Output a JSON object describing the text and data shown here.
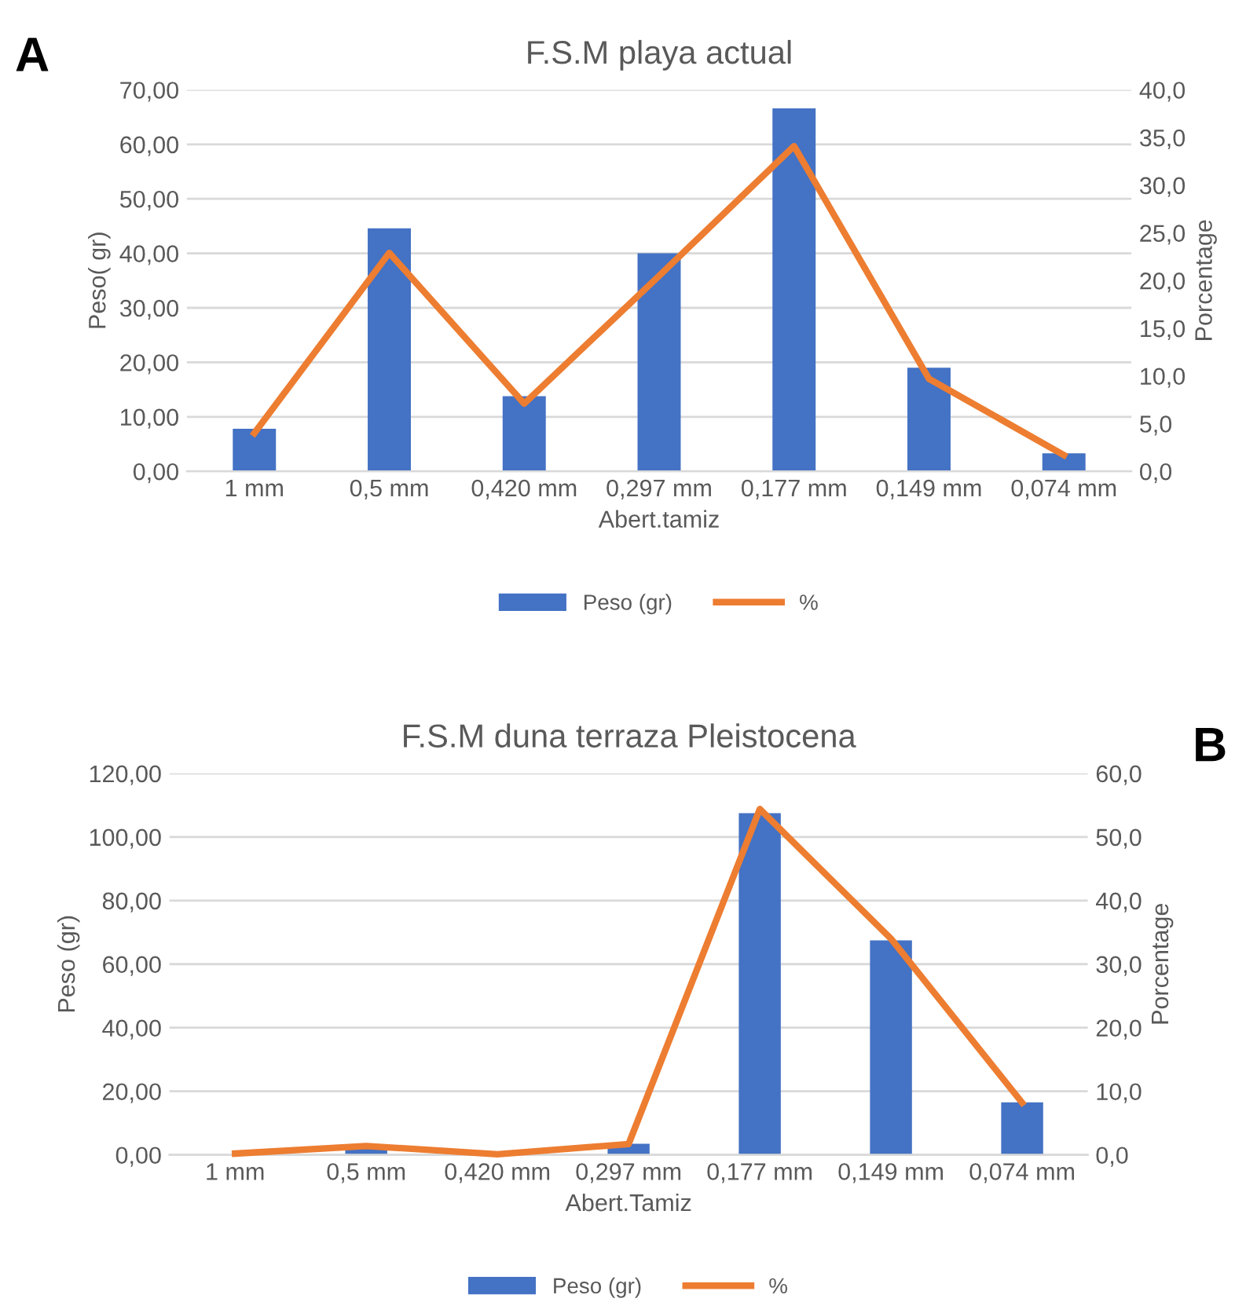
{
  "chart_data": [
    {
      "type": "bar",
      "title": "F.S.M playa actual",
      "xlabel": "Abert.tamiz",
      "ylabel": "Peso( gr)",
      "y2label": "Porcentage",
      "annotations": [
        "A"
      ],
      "categories": [
        "1 mm",
        "0,5 mm",
        "0,420 mm",
        "0,297 mm",
        "0,177 mm",
        "0,149 mm",
        "0,074 mm"
      ],
      "series": [
        {
          "name": "Peso (gr)",
          "color": "#4472c4",
          "values": [
            7.8,
            44.6,
            13.8,
            40.0,
            66.6,
            19.0,
            3.3
          ]
        },
        {
          "name": "%",
          "type": "line",
          "axis": "y2",
          "color": "#ed7d31",
          "values": [
            4.0,
            22.9,
            7.1,
            20.5,
            34.1,
            9.7,
            1.7
          ]
        }
      ],
      "ylim": [
        0,
        70
      ],
      "yticks": [
        {
          "value": 0,
          "label": "0,00"
        },
        {
          "value": 10,
          "label": "10,00"
        },
        {
          "value": 20,
          "label": "20,00"
        },
        {
          "value": 30,
          "label": "30,00"
        },
        {
          "value": 40,
          "label": "40,00"
        },
        {
          "value": 50,
          "label": "50,00"
        },
        {
          "value": 60,
          "label": "60,00"
        },
        {
          "value": 70,
          "label": "70,00"
        }
      ],
      "y2lim": [
        0,
        40
      ],
      "y2ticks": [
        {
          "value": 0,
          "label": "0,0"
        },
        {
          "value": 5,
          "label": "5,0"
        },
        {
          "value": 10,
          "label": "10,0"
        },
        {
          "value": 15,
          "label": "15,0"
        },
        {
          "value": 20,
          "label": "20,0"
        },
        {
          "value": 25,
          "label": "25,0"
        },
        {
          "value": 30,
          "label": "30,0"
        },
        {
          "value": 35,
          "label": "35,0"
        },
        {
          "value": 40,
          "label": "40,0"
        }
      ],
      "grid": "y",
      "legend": "bottom"
    },
    {
      "type": "bar",
      "title": "F.S.M duna terraza Pleistocena",
      "xlabel": "Abert.Tamiz",
      "ylabel": "Peso (gr)",
      "y2label": "Porcentage",
      "annotations": [
        "B"
      ],
      "categories": [
        "1 mm",
        "0,5 mm",
        "0,420 mm",
        "0,297 mm",
        "0,177 mm",
        "0,149 mm",
        "0,074 mm"
      ],
      "series": [
        {
          "name": "Peso (gr)",
          "color": "#4472c4",
          "values": [
            null,
            2.7,
            null,
            3.5,
            107.5,
            67.5,
            16.5
          ]
        },
        {
          "name": "%",
          "type": "line",
          "axis": "y2",
          "color": "#ed7d31",
          "values": [
            0.2,
            1.4,
            0.1,
            1.7,
            54.4,
            34.0,
            8.2
          ]
        }
      ],
      "ylim": [
        0,
        120
      ],
      "yticks": [
        {
          "value": 0,
          "label": "0,00"
        },
        {
          "value": 20,
          "label": "20,00"
        },
        {
          "value": 40,
          "label": "40,00"
        },
        {
          "value": 60,
          "label": "60,00"
        },
        {
          "value": 80,
          "label": "80,00"
        },
        {
          "value": 100,
          "label": "100,00"
        },
        {
          "value": 120,
          "label": "120,00"
        }
      ],
      "y2lim": [
        0,
        60
      ],
      "y2ticks": [
        {
          "value": 0,
          "label": "0,0"
        },
        {
          "value": 10,
          "label": "10,0"
        },
        {
          "value": 20,
          "label": "20,0"
        },
        {
          "value": 30,
          "label": "30,0"
        },
        {
          "value": 40,
          "label": "40,0"
        },
        {
          "value": 50,
          "label": "50,0"
        },
        {
          "value": 60,
          "label": "60,0"
        }
      ],
      "grid": "y",
      "legend": "bottom"
    }
  ]
}
